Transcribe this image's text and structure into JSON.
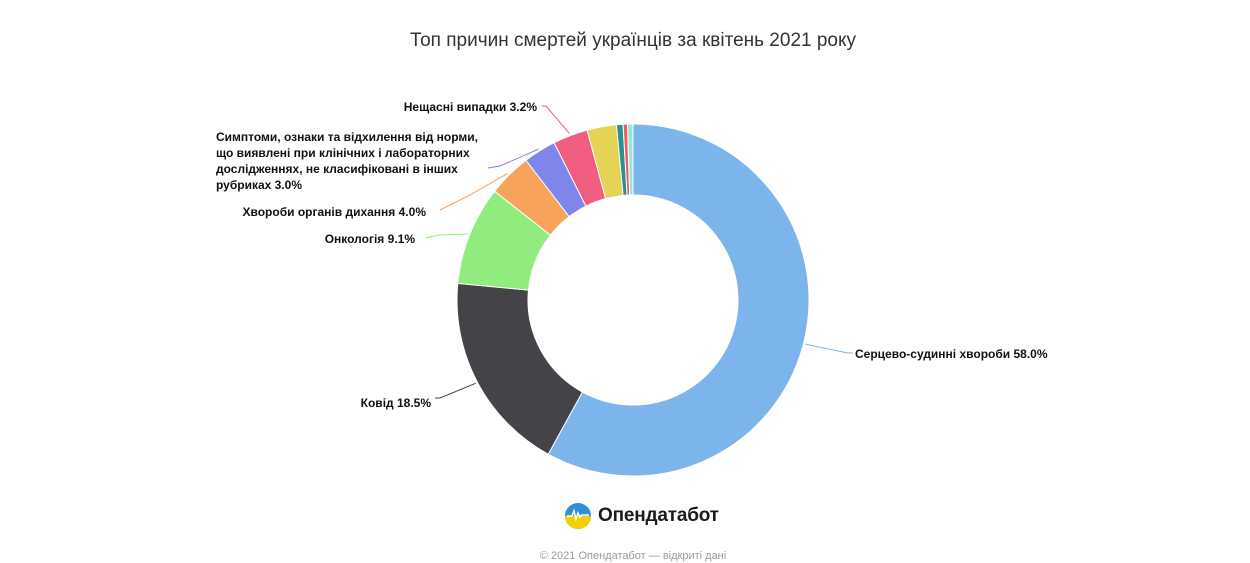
{
  "chart_data": {
    "type": "pie",
    "variant": "donut",
    "title": "Топ причин смертей українців за квітень 2021 року",
    "slices": [
      {
        "label": "Серцево-судинні хвороби",
        "value": 58.0,
        "display": "Серцево-судинні хвороби 58.0%",
        "color": "#7cb5ec"
      },
      {
        "label": "Ковід",
        "value": 18.5,
        "display": "Ковід 18.5%",
        "color": "#434348"
      },
      {
        "label": "Онкологія",
        "value": 9.1,
        "display": "Онкологія 9.1%",
        "color": "#90ed7d"
      },
      {
        "label": "Хвороби органів дихання",
        "value": 4.0,
        "display": "Хвороби органів дихання 4.0%",
        "color": "#f7a35c"
      },
      {
        "label": "Симптоми, ознаки та відхилення від норми, що виявлені при клінічних і лабораторних дослідженнях, не класифіковані в інших рубриках",
        "value": 3.0,
        "display_lines": [
          "Симптоми, ознаки та відхилення від норми,",
          "що виявлені при клінічних і лабораторних",
          "дослідженнях, не класифіковані в інших",
          "рубриках 3.0%"
        ],
        "color": "#8085e9"
      },
      {
        "label": "Нещасні випадки",
        "value": 3.2,
        "display": "Нещасні випадки 3.2%",
        "color": "#f15c80"
      },
      {
        "label": "",
        "value": 2.7,
        "color": "#e4d354"
      },
      {
        "label": "",
        "value": 0.6,
        "color": "#2b908f"
      },
      {
        "label": "",
        "value": 0.4,
        "color": "#f45b5b"
      },
      {
        "label": "",
        "value": 0.5,
        "color": "#91e8e1"
      }
    ]
  },
  "branding": {
    "logo_text": "Опендатабот",
    "footer": "© 2021 Опендатабот — відкриті дані"
  }
}
